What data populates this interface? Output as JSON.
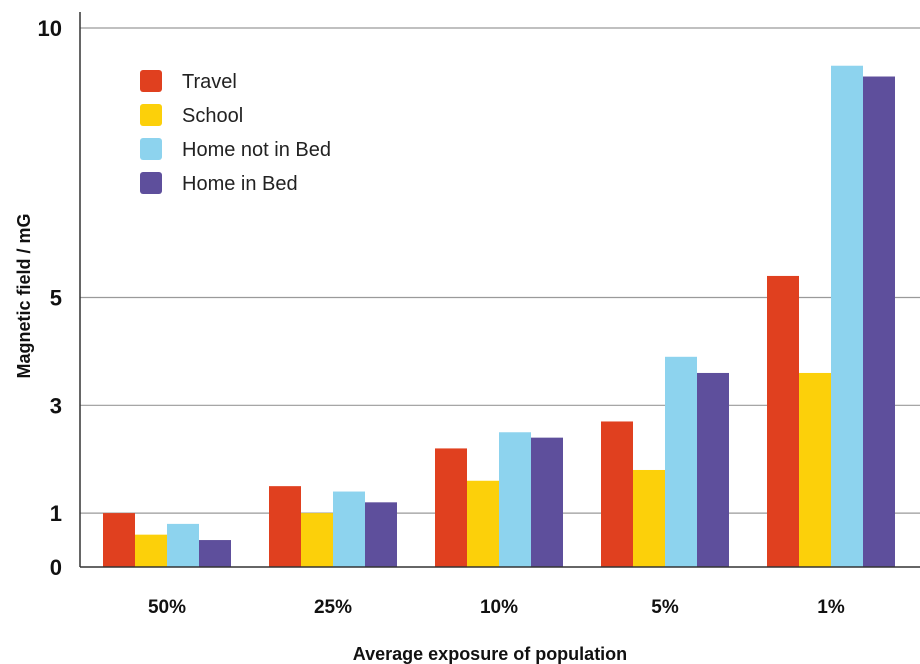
{
  "chart_data": {
    "type": "bar",
    "title": "",
    "xlabel": "Average exposure of population",
    "ylabel": "Magnetic field / mG",
    "categories": [
      "50%",
      "25%",
      "10%",
      "5%",
      "1%"
    ],
    "y_ticks": [
      0,
      1,
      3,
      5,
      10
    ],
    "ylim": [
      0,
      10
    ],
    "grid": "horizontal",
    "legend_position": "top-left",
    "series": [
      {
        "name": "Travel",
        "color": "#e0401f",
        "values": [
          1.0,
          1.5,
          2.2,
          2.7,
          5.4
        ]
      },
      {
        "name": "School",
        "color": "#fcd00a",
        "values": [
          0.6,
          1.0,
          1.6,
          1.8,
          3.6
        ]
      },
      {
        "name": "Home not in Bed",
        "color": "#8dd3ee",
        "values": [
          0.8,
          1.4,
          2.5,
          3.9,
          9.3
        ]
      },
      {
        "name": "Home in Bed",
        "color": "#5e4f9c",
        "values": [
          0.5,
          1.2,
          2.4,
          3.6,
          9.1
        ]
      }
    ]
  }
}
